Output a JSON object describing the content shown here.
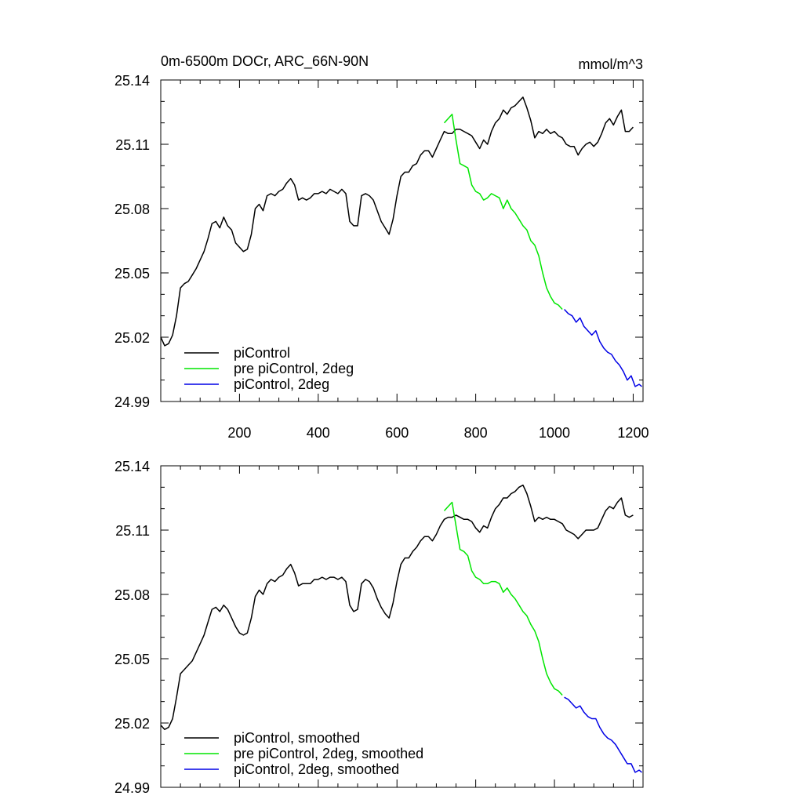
{
  "header": {
    "title": "0m-6500m DOCr, ARC_66N-90N",
    "units": "mmol/m^3"
  },
  "colors": {
    "picontrol": "#000000",
    "pre_picontrol_2deg": "#00e600",
    "picontrol_2deg": "#0000e6"
  },
  "chart_data": [
    {
      "type": "line",
      "panel": "top",
      "xlim": [
        0,
        1225
      ],
      "ylim": [
        24.99,
        25.14
      ],
      "x_ticks": [
        200,
        400,
        600,
        800,
        1000,
        1200
      ],
      "x_tick_labels": [
        "200",
        "400",
        "600",
        "800",
        "1000",
        "1200"
      ],
      "y_ticks": [
        24.99,
        25.02,
        25.05,
        25.08,
        25.11,
        25.14
      ],
      "y_tick_labels": [
        "24.99",
        "25.02",
        "25.05",
        "25.08",
        "25.11",
        "25.14"
      ],
      "legend_position": "bottom-left",
      "series": [
        {
          "name": "piControl",
          "color": "#000000",
          "x": [
            0,
            10,
            20,
            30,
            40,
            50,
            60,
            70,
            80,
            90,
            100,
            110,
            120,
            130,
            140,
            150,
            160,
            170,
            180,
            190,
            200,
            210,
            220,
            230,
            240,
            250,
            260,
            270,
            280,
            290,
            300,
            310,
            320,
            330,
            340,
            350,
            360,
            370,
            380,
            390,
            400,
            410,
            420,
            430,
            440,
            450,
            460,
            470,
            480,
            490,
            500,
            510,
            520,
            530,
            540,
            550,
            560,
            570,
            580,
            590,
            600,
            610,
            620,
            630,
            640,
            650,
            660,
            670,
            680,
            690,
            700,
            710,
            720,
            730,
            740,
            750,
            760,
            770,
            780,
            790,
            800,
            810,
            820,
            830,
            840,
            850,
            860,
            870,
            880,
            890,
            900,
            910,
            920,
            930,
            940,
            950,
            960,
            970,
            980,
            990,
            1000,
            1010,
            1020,
            1030,
            1040,
            1050,
            1060,
            1070,
            1080,
            1090,
            1100,
            1110,
            1120,
            1130,
            1140,
            1150,
            1160,
            1170,
            1180,
            1190,
            1200
          ],
          "values": [
            25.02,
            25.016,
            25.017,
            25.021,
            25.03,
            25.043,
            25.045,
            25.046,
            25.049,
            25.052,
            25.056,
            25.06,
            25.066,
            25.073,
            25.074,
            25.071,
            25.076,
            25.072,
            25.07,
            25.064,
            25.062,
            25.06,
            25.061,
            25.068,
            25.08,
            25.082,
            25.079,
            25.086,
            25.087,
            25.086,
            25.088,
            25.089,
            25.092,
            25.094,
            25.091,
            25.084,
            25.085,
            25.084,
            25.085,
            25.087,
            25.087,
            25.088,
            25.087,
            25.089,
            25.088,
            25.087,
            25.089,
            25.087,
            25.074,
            25.072,
            25.072,
            25.086,
            25.087,
            25.086,
            25.084,
            25.079,
            25.074,
            25.071,
            25.068,
            25.075,
            25.086,
            25.095,
            25.097,
            25.097,
            25.1,
            25.101,
            25.105,
            25.107,
            25.107,
            25.104,
            25.108,
            25.112,
            25.116,
            25.115,
            25.115,
            25.117,
            25.117,
            25.116,
            25.115,
            25.114,
            25.111,
            25.108,
            25.112,
            25.11,
            25.116,
            25.12,
            25.122,
            25.126,
            25.124,
            25.127,
            25.128,
            25.13,
            25.132,
            25.127,
            25.121,
            25.113,
            25.116,
            25.115,
            25.117,
            25.115,
            25.116,
            25.114,
            25.113,
            25.11,
            25.109,
            25.109,
            25.105,
            25.108,
            25.11,
            25.111,
            25.109,
            25.111,
            25.115,
            25.12,
            25.122,
            25.119,
            25.123,
            25.126,
            25.116,
            25.116,
            25.118
          ]
        },
        {
          "name": "pre piControl, 2deg",
          "color": "#00e600",
          "x": [
            720,
            730,
            740,
            750,
            760,
            770,
            780,
            790,
            800,
            810,
            820,
            830,
            840,
            850,
            860,
            870,
            880,
            890,
            900,
            910,
            920,
            930,
            940,
            950,
            960,
            970,
            980,
            990,
            1000,
            1010,
            1020
          ],
          "values": [
            25.12,
            25.122,
            25.124,
            25.112,
            25.101,
            25.1,
            25.099,
            25.091,
            25.088,
            25.087,
            25.084,
            25.085,
            25.087,
            25.086,
            25.085,
            25.08,
            25.084,
            25.08,
            25.078,
            25.075,
            25.072,
            25.07,
            25.065,
            25.063,
            25.058,
            25.05,
            25.043,
            25.039,
            25.036,
            25.035,
            25.033
          ]
        },
        {
          "name": "piControl, 2deg",
          "color": "#0000e6",
          "x": [
            1025,
            1035,
            1045,
            1055,
            1065,
            1075,
            1085,
            1095,
            1105,
            1115,
            1125,
            1135,
            1145,
            1155,
            1165,
            1175,
            1185,
            1195,
            1205,
            1215,
            1222
          ],
          "values": [
            25.033,
            25.031,
            25.03,
            25.027,
            25.029,
            25.025,
            25.023,
            25.021,
            25.023,
            25.018,
            25.015,
            25.013,
            25.012,
            25.009,
            25.007,
            25.004,
            25.0,
            25.002,
            24.997,
            24.998,
            24.997
          ]
        }
      ]
    },
    {
      "type": "line",
      "panel": "bottom",
      "xlim": [
        0,
        1225
      ],
      "ylim": [
        24.99,
        25.14
      ],
      "y_ticks": [
        24.99,
        25.02,
        25.05,
        25.08,
        25.11,
        25.14
      ],
      "y_tick_labels": [
        "24.99",
        "25.02",
        "25.05",
        "25.08",
        "25.11",
        "25.14"
      ],
      "legend_position": "bottom-left",
      "series": [
        {
          "name": "piControl, smoothed",
          "color": "#000000",
          "x": [
            0,
            10,
            20,
            30,
            40,
            50,
            60,
            70,
            80,
            90,
            100,
            110,
            120,
            130,
            140,
            150,
            160,
            170,
            180,
            190,
            200,
            210,
            220,
            230,
            240,
            250,
            260,
            270,
            280,
            290,
            300,
            310,
            320,
            330,
            340,
            350,
            360,
            370,
            380,
            390,
            400,
            410,
            420,
            430,
            440,
            450,
            460,
            470,
            480,
            490,
            500,
            510,
            520,
            530,
            540,
            550,
            560,
            570,
            580,
            590,
            600,
            610,
            620,
            630,
            640,
            650,
            660,
            670,
            680,
            690,
            700,
            710,
            720,
            730,
            740,
            750,
            760,
            770,
            780,
            790,
            800,
            810,
            820,
            830,
            840,
            850,
            860,
            870,
            880,
            890,
            900,
            910,
            920,
            930,
            940,
            950,
            960,
            970,
            980,
            990,
            1000,
            1010,
            1020,
            1030,
            1040,
            1050,
            1060,
            1070,
            1080,
            1090,
            1100,
            1110,
            1120,
            1130,
            1140,
            1150,
            1160,
            1170,
            1180,
            1190,
            1200
          ],
          "values": [
            25.019,
            25.017,
            25.018,
            25.022,
            25.032,
            25.043,
            25.045,
            25.047,
            25.049,
            25.053,
            25.057,
            25.061,
            25.067,
            25.073,
            25.074,
            25.072,
            25.075,
            25.073,
            25.069,
            25.065,
            25.062,
            25.061,
            25.062,
            25.069,
            25.079,
            25.082,
            25.08,
            25.085,
            25.087,
            25.086,
            25.088,
            25.089,
            25.092,
            25.094,
            25.09,
            25.084,
            25.085,
            25.085,
            25.085,
            25.087,
            25.087,
            25.088,
            25.087,
            25.088,
            25.088,
            25.087,
            25.088,
            25.086,
            25.075,
            25.072,
            25.073,
            25.085,
            25.087,
            25.086,
            25.083,
            25.078,
            25.074,
            25.071,
            25.069,
            25.076,
            25.086,
            25.094,
            25.097,
            25.097,
            25.1,
            25.102,
            25.105,
            25.107,
            25.107,
            25.105,
            25.108,
            25.112,
            25.115,
            25.116,
            25.116,
            25.117,
            25.116,
            25.115,
            25.115,
            25.114,
            25.111,
            25.109,
            25.112,
            25.111,
            25.116,
            25.12,
            25.122,
            25.125,
            25.125,
            25.127,
            25.128,
            25.13,
            25.131,
            25.127,
            25.121,
            25.114,
            25.116,
            25.115,
            25.116,
            25.115,
            25.115,
            25.114,
            25.113,
            25.11,
            25.109,
            25.108,
            25.106,
            25.108,
            25.11,
            25.11,
            25.11,
            25.111,
            25.115,
            25.119,
            25.121,
            25.12,
            25.123,
            25.125,
            25.117,
            25.116,
            25.117
          ]
        },
        {
          "name": "pre piControl, 2deg, smoothed",
          "color": "#00e600",
          "x": [
            720,
            730,
            740,
            750,
            760,
            770,
            780,
            790,
            800,
            810,
            820,
            830,
            840,
            850,
            860,
            870,
            880,
            890,
            900,
            910,
            920,
            930,
            940,
            950,
            960,
            970,
            980,
            990,
            1000,
            1010,
            1020
          ],
          "values": [
            25.119,
            25.121,
            25.123,
            25.112,
            25.101,
            25.1,
            25.098,
            25.091,
            25.088,
            25.087,
            25.085,
            25.085,
            25.086,
            25.086,
            25.085,
            25.081,
            25.083,
            25.08,
            25.078,
            25.075,
            25.072,
            25.07,
            25.066,
            25.063,
            25.058,
            25.05,
            25.043,
            25.039,
            25.036,
            25.035,
            25.033
          ]
        },
        {
          "name": "piControl, 2deg, smoothed",
          "color": "#0000e6",
          "x": [
            1025,
            1035,
            1045,
            1055,
            1065,
            1075,
            1085,
            1095,
            1105,
            1115,
            1125,
            1135,
            1145,
            1155,
            1165,
            1175,
            1185,
            1195,
            1205,
            1215,
            1222
          ],
          "values": [
            25.032,
            25.031,
            25.029,
            25.027,
            25.028,
            25.025,
            25.023,
            25.022,
            25.022,
            25.018,
            25.015,
            25.013,
            25.012,
            25.01,
            25.007,
            25.004,
            25.001,
            25.001,
            24.997,
            24.998,
            24.997
          ]
        }
      ]
    }
  ]
}
